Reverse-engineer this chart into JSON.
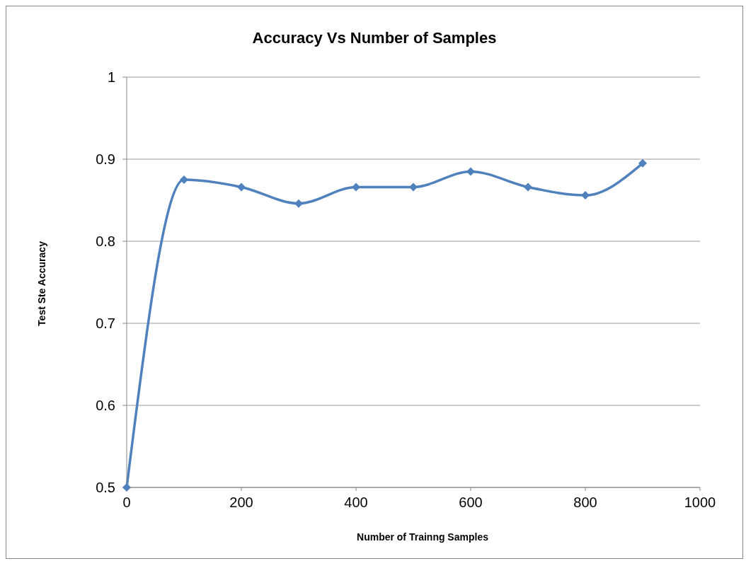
{
  "chart_data": {
    "type": "line",
    "title": "Accuracy Vs Number of Samples",
    "xlabel": "Number of Trainng Samples",
    "ylabel": "Test Ste Accuracy",
    "x": [
      0,
      100,
      200,
      300,
      400,
      500,
      600,
      700,
      800,
      900
    ],
    "series": [
      {
        "color": "#4f81bd",
        "values": [
          0.5,
          0.875,
          0.866,
          0.846,
          0.866,
          0.866,
          0.885,
          0.866,
          0.856,
          0.895
        ]
      }
    ],
    "xlim": [
      0,
      1000
    ],
    "xticks": [
      0,
      200,
      400,
      600,
      800,
      1000
    ],
    "ylim": [
      0.5,
      1
    ],
    "yticks": [
      0.5,
      0.6,
      0.7,
      0.8,
      0.9,
      1
    ],
    "grid": "y",
    "marker": "diamond",
    "line_style": "solid",
    "legend": false
  }
}
